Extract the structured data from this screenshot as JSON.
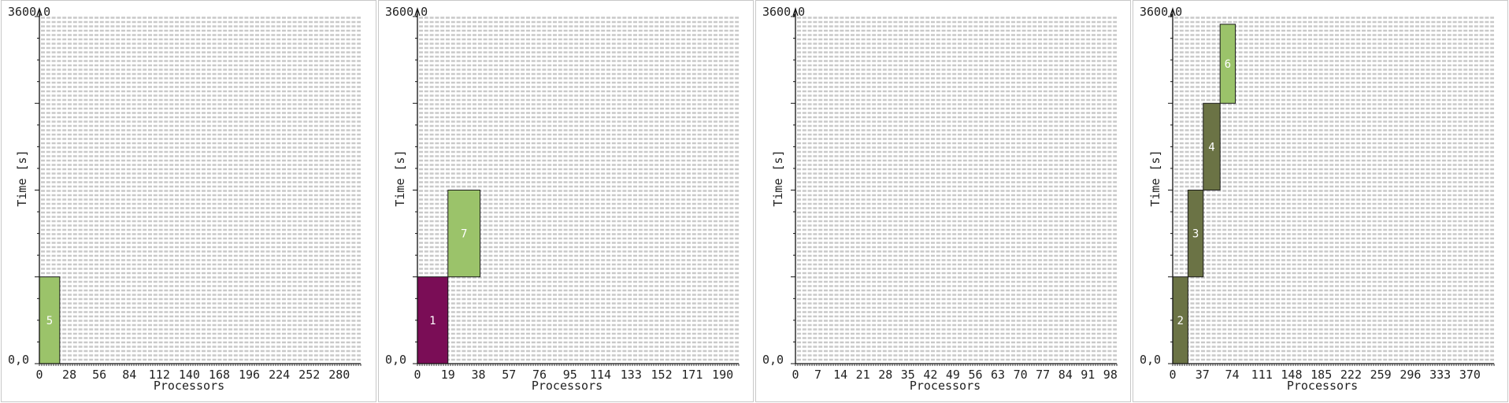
{
  "chart_data": [
    {
      "type": "bar",
      "panel": 1,
      "xlabel": "Processors",
      "ylabel": "Time [s]",
      "ylim": [
        0,
        3600
      ],
      "y_top_label": "3600,0",
      "y_bottom_label": "0,0",
      "xlim": [
        0,
        300
      ],
      "x_ticks": [
        "0",
        "28",
        "56",
        "84",
        "112",
        "140",
        "168",
        "196",
        "224",
        "252",
        "280"
      ],
      "x_tick_values": [
        0,
        28,
        56,
        84,
        112,
        140,
        168,
        196,
        224,
        252,
        280
      ],
      "jobs": [
        {
          "label": "5",
          "x_start": 0,
          "x_end": 19,
          "t_start": 0,
          "t_end": 900,
          "color": "#9bc36a"
        }
      ]
    },
    {
      "type": "bar",
      "panel": 2,
      "xlabel": "Processors",
      "ylabel": "Time [s]",
      "ylim": [
        0,
        3600
      ],
      "y_top_label": "3600,0",
      "y_bottom_label": "0,0",
      "xlim": [
        0,
        200
      ],
      "x_ticks": [
        "0",
        "19",
        "38",
        "57",
        "76",
        "95",
        "114",
        "133",
        "152",
        "171",
        "190"
      ],
      "x_tick_values": [
        0,
        19,
        38,
        57,
        76,
        95,
        114,
        133,
        152,
        171,
        190
      ],
      "jobs": [
        {
          "label": "1",
          "x_start": 0,
          "x_end": 19,
          "t_start": 0,
          "t_end": 900,
          "color": "#7a0d56"
        },
        {
          "label": "7",
          "x_start": 19,
          "x_end": 39,
          "t_start": 900,
          "t_end": 1800,
          "color": "#9bc36a"
        }
      ]
    },
    {
      "type": "bar",
      "panel": 3,
      "xlabel": "Processors",
      "ylabel": "Time [s]",
      "ylim": [
        0,
        3600
      ],
      "y_top_label": "3600,0",
      "y_bottom_label": "0,0",
      "xlim": [
        0,
        100
      ],
      "x_ticks": [
        "0",
        "7",
        "14",
        "21",
        "28",
        "35",
        "42",
        "49",
        "56",
        "63",
        "70",
        "77",
        "84",
        "91",
        "98"
      ],
      "x_tick_values": [
        0,
        7,
        14,
        21,
        28,
        35,
        42,
        49,
        56,
        63,
        70,
        77,
        84,
        91,
        98
      ],
      "jobs": []
    },
    {
      "type": "bar",
      "panel": 4,
      "xlabel": "Processors",
      "ylabel": "Time [s]",
      "ylim": [
        0,
        3600
      ],
      "y_top_label": "3600,0",
      "y_bottom_label": "0,0",
      "xlim": [
        0,
        400
      ],
      "x_ticks": [
        "0",
        "37",
        "74",
        "111",
        "148",
        "185",
        "222",
        "259",
        "296",
        "333",
        "370"
      ],
      "x_tick_values": [
        0,
        37,
        74,
        111,
        148,
        185,
        222,
        259,
        296,
        333,
        370
      ],
      "jobs": [
        {
          "label": "2",
          "x_start": 0,
          "x_end": 19,
          "t_start": 0,
          "t_end": 900,
          "color": "#6b7345"
        },
        {
          "label": "3",
          "x_start": 19,
          "x_end": 38,
          "t_start": 900,
          "t_end": 1800,
          "color": "#6b7345"
        },
        {
          "label": "4",
          "x_start": 38,
          "x_end": 59,
          "t_start": 1800,
          "t_end": 2700,
          "color": "#6b7345"
        },
        {
          "label": "6",
          "x_start": 59,
          "x_end": 78,
          "t_start": 2700,
          "t_end": 3520,
          "color": "#9bc36a"
        }
      ]
    }
  ]
}
